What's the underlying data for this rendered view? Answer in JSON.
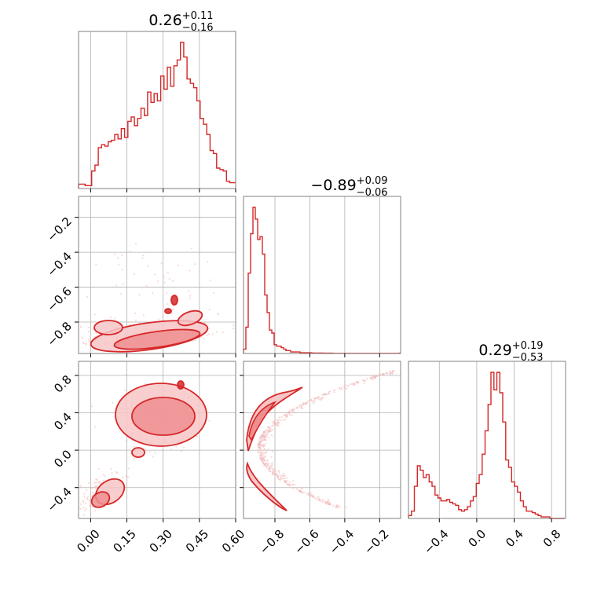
{
  "chart_data": {
    "type": "corner",
    "colors": {
      "line": "#d62728",
      "fill_light": "#f7c6c7",
      "fill_mid": "#ee8e90",
      "scatter": "#f3b9ba",
      "frame": "#808080",
      "grid": "#b0b0b0"
    },
    "grid": true,
    "parameters": [
      {
        "range": [
          -0.05,
          0.6
        ],
        "ticks": [
          0.0,
          0.15,
          0.3,
          0.45,
          0.6
        ],
        "tick_labels": [
          "0.00",
          "0.15",
          "0.30",
          "0.45",
          "0.60"
        ],
        "title": {
          "median": "0.26",
          "plus": "+0.11",
          "minus": "−0.16"
        }
      },
      {
        "range": [
          -0.98,
          -0.08
        ],
        "ticks": [
          -0.8,
          -0.6,
          -0.4,
          -0.2
        ],
        "tick_labels": [
          "−0.8",
          "−0.6",
          "−0.4",
          "−0.2"
        ],
        "title": {
          "median": "−0.89",
          "plus": "+0.09",
          "minus": "−0.06"
        }
      },
      {
        "range": [
          -0.73,
          0.95
        ],
        "ticks": [
          -0.4,
          0.0,
          0.4,
          0.8
        ],
        "tick_labels": [
          "−0.4",
          "0.0",
          "0.4",
          "0.8"
        ],
        "title": {
          "median": "0.29",
          "plus": "+0.19",
          "minus": "−0.53"
        }
      }
    ],
    "histograms": [
      {
        "param": 0,
        "bin_start": -0.05,
        "bin_width": 0.0136,
        "counts": [
          3,
          3,
          2,
          2,
          12,
          16,
          28,
          30,
          29,
          32,
          33,
          37,
          34,
          41,
          35,
          46,
          49,
          43,
          48,
          55,
          50,
          66,
          59,
          65,
          60,
          77,
          68,
          83,
          70,
          84,
          88,
          100,
          90,
          75,
          72,
          69,
          60,
          48,
          44,
          37,
          26,
          24,
          14,
          13,
          12,
          5,
          4,
          4,
          4,
          2,
          3,
          1
        ]
      },
      {
        "param": 1,
        "bin_start": -0.98,
        "bin_width": 0.0135,
        "counts": [
          3,
          18,
          55,
          82,
          100,
          92,
          78,
          80,
          68,
          40,
          28,
          16,
          14,
          6,
          5,
          5,
          4,
          3,
          2,
          2,
          1,
          1,
          1,
          1,
          0.5,
          0.5,
          0.5,
          0.5,
          0.5,
          0.3,
          0.3,
          0.3,
          0.3,
          0.3,
          0.2,
          0.2,
          0.2,
          0.2,
          0.1,
          0.1,
          0.1,
          0.1,
          0.1,
          0.1,
          0.1,
          0.1,
          0.1,
          0.1,
          0.1,
          0.1,
          0.1,
          0.1,
          0.1,
          0.1,
          0.1,
          0.1,
          0.1,
          0.1,
          0.1,
          0.1,
          0.1,
          0.1,
          0.1,
          0.1,
          0.1,
          0.1,
          0.2
        ]
      },
      {
        "param": 2,
        "bin_start": -0.73,
        "bin_width": 0.0315,
        "counts": [
          2,
          5,
          22,
          36,
          33,
          28,
          30,
          25,
          22,
          16,
          14,
          12,
          12,
          13,
          11,
          10,
          9,
          6,
          5,
          6,
          8,
          12,
          15,
          24,
          30,
          44,
          60,
          78,
          100,
          88,
          100,
          86,
          66,
          40,
          35,
          25,
          22,
          18,
          12,
          8,
          5,
          5,
          4,
          3,
          2,
          1,
          1,
          1,
          0,
          0,
          0,
          0,
          0
        ]
      }
    ],
    "pairs": [
      {
        "x_param": 0,
        "y_param": 1
      },
      {
        "x_param": 0,
        "y_param": 2
      },
      {
        "x_param": 1,
        "y_param": 2
      }
    ]
  }
}
